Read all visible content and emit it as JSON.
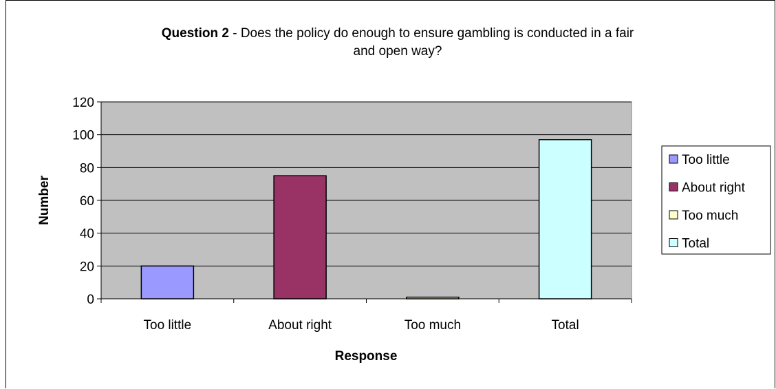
{
  "chart_data": {
    "type": "bar",
    "title_bold": "Question 2",
    "title_rest_line1": " - Does the policy do enough to ensure gambling is conducted in a fair",
    "title_line2": "and open way?",
    "xlabel": "Response",
    "ylabel": "Number",
    "categories": [
      "Too little",
      "About right",
      "Too much",
      "Total"
    ],
    "values": [
      20,
      75,
      1,
      97
    ],
    "ylim": [
      0,
      120
    ],
    "yticks": [
      0,
      20,
      40,
      60,
      80,
      100,
      120
    ],
    "grid": true,
    "legend_position": "right",
    "legend": [
      "Too little",
      "About right",
      "Too much",
      "Total"
    ],
    "colors": [
      "#9999FF",
      "#993366",
      "#FFFFCC",
      "#CCFFFF"
    ],
    "plot_background": "#C0C0C0"
  }
}
